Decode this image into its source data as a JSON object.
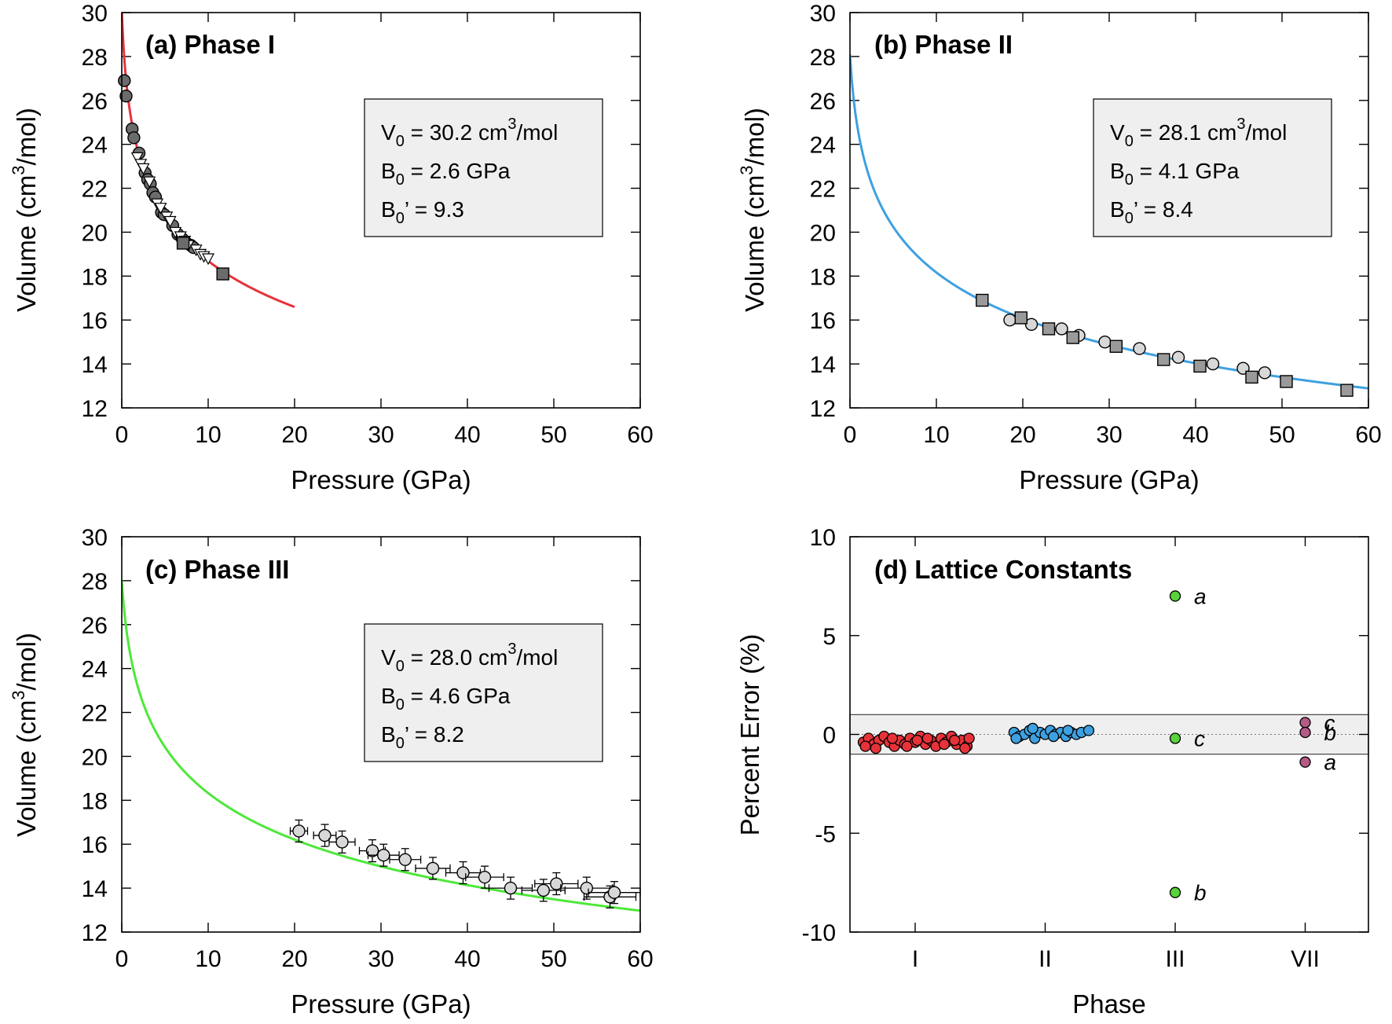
{
  "colors": {
    "phase1_curve": "#e8323a",
    "phase2_curve": "#3ea0e0",
    "phase3_curve": "#4ee83a",
    "gray_dark": "#6b6b6b",
    "gray_mid": "#9a9a9a",
    "gray_light": "#d8d8d8",
    "box_fill": "#efefef",
    "lattice_red": "#e8323a",
    "lattice_blue": "#3ea0e0",
    "lattice_green": "#58d33a",
    "lattice_purple": "#b45a86"
  },
  "chart_data": [
    {
      "type": "scatter",
      "title": "(a) Phase I",
      "xlabel": "Pressure (GPa)",
      "ylabel_main": "Volume (cm",
      "ylabel_sup": "3",
      "ylabel_end": "/mol)",
      "xlim": [
        0,
        60
      ],
      "ylim": [
        12,
        30
      ],
      "xticks": [
        "0",
        "10",
        "20",
        "30",
        "40",
        "50",
        "60"
      ],
      "yticks": [
        "12",
        "14",
        "16",
        "18",
        "20",
        "22",
        "24",
        "26",
        "28",
        "30"
      ],
      "fit": {
        "V0": 30.2,
        "B0": 2.6,
        "Bp": 9.3,
        "pmax": 20
      },
      "params": {
        "v0_main": "V",
        "v0_sub": "0",
        "v0_rest": " = 30.2 cm",
        "v0_sup": "3",
        "v0_end": "/mol",
        "b0_main": "B",
        "b0_sub": "0",
        "b0_rest": " = 2.6 GPa",
        "bp_main": "B",
        "bp_sub": "0",
        "bp_rest": "’ = 9.3"
      },
      "series": [
        {
          "marker": "circle",
          "fill": "gray_dark",
          "points": [
            [
              0.3,
              26.9
            ],
            [
              0.5,
              26.2
            ],
            [
              1.2,
              24.7
            ],
            [
              1.4,
              24.3
            ],
            [
              2.0,
              23.6
            ],
            [
              2.7,
              22.7
            ],
            [
              3.0,
              22.4
            ],
            [
              3.3,
              22.2
            ],
            [
              3.6,
              21.8
            ],
            [
              3.9,
              21.6
            ],
            [
              4.6,
              20.9
            ],
            [
              4.9,
              20.8
            ],
            [
              5.9,
              20.3
            ],
            [
              6.5,
              19.9
            ],
            [
              7.0,
              19.7
            ],
            [
              7.5,
              19.5
            ],
            [
              8.0,
              19.4
            ],
            [
              8.3,
              19.3
            ]
          ]
        },
        {
          "marker": "triangle-down",
          "fill": "white",
          "points": [
            [
              1.8,
              23.4
            ],
            [
              2.2,
              23.1
            ],
            [
              2.5,
              22.9
            ],
            [
              3.2,
              22.3
            ],
            [
              4.1,
              21.3
            ],
            [
              4.5,
              21.1
            ],
            [
              5.2,
              20.7
            ],
            [
              5.6,
              20.5
            ],
            [
              6.2,
              20.0
            ],
            [
              6.8,
              19.8
            ],
            [
              7.3,
              19.6
            ],
            [
              7.7,
              19.4
            ],
            [
              8.6,
              19.2
            ],
            [
              9.1,
              19.0
            ],
            [
              9.5,
              18.9
            ],
            [
              10.0,
              18.8
            ]
          ]
        },
        {
          "marker": "square",
          "fill": "gray_dark",
          "points": [
            [
              7.1,
              19.5
            ],
            [
              11.7,
              18.1
            ]
          ]
        }
      ]
    },
    {
      "type": "scatter",
      "title": "(b) Phase II",
      "xlabel": "Pressure (GPa)",
      "ylabel_main": "Volume (cm",
      "ylabel_sup": "3",
      "ylabel_end": "/mol)",
      "xlim": [
        0,
        60
      ],
      "ylim": [
        12,
        30
      ],
      "xticks": [
        "0",
        "10",
        "20",
        "30",
        "40",
        "50",
        "60"
      ],
      "yticks": [
        "12",
        "14",
        "16",
        "18",
        "20",
        "22",
        "24",
        "26",
        "28",
        "30"
      ],
      "fit": {
        "V0": 28.1,
        "B0": 4.1,
        "Bp": 8.4,
        "pmax": 60
      },
      "params": {
        "v0_main": "V",
        "v0_sub": "0",
        "v0_rest": " = 28.1 cm",
        "v0_sup": "3",
        "v0_end": "/mol",
        "b0_main": "B",
        "b0_sub": "0",
        "b0_rest": " = 4.1 GPa",
        "bp_main": "B",
        "bp_sub": "0",
        "bp_rest": "’ = 8.4"
      },
      "series": [
        {
          "marker": "circle",
          "fill": "gray_light",
          "points": [
            [
              18.5,
              16.0
            ],
            [
              21.0,
              15.8
            ],
            [
              24.5,
              15.6
            ],
            [
              26.5,
              15.3
            ],
            [
              29.5,
              15.0
            ],
            [
              33.5,
              14.7
            ],
            [
              38.0,
              14.3
            ],
            [
              42.0,
              14.0
            ],
            [
              45.5,
              13.8
            ],
            [
              48.0,
              13.6
            ]
          ]
        },
        {
          "marker": "square",
          "fill": "gray_mid",
          "points": [
            [
              15.3,
              16.9
            ],
            [
              19.8,
              16.1
            ],
            [
              23.0,
              15.6
            ],
            [
              25.8,
              15.2
            ],
            [
              30.8,
              14.8
            ],
            [
              36.3,
              14.2
            ],
            [
              40.5,
              13.9
            ],
            [
              46.5,
              13.4
            ],
            [
              50.5,
              13.2
            ],
            [
              57.5,
              12.8
            ]
          ]
        }
      ]
    },
    {
      "type": "scatter",
      "title": "(c) Phase III",
      "xlabel": "Pressure (GPa)",
      "ylabel_main": "Volume (cm",
      "ylabel_sup": "3",
      "ylabel_end": "/mol)",
      "xlim": [
        0,
        60
      ],
      "ylim": [
        12,
        30
      ],
      "xticks": [
        "0",
        "10",
        "20",
        "30",
        "40",
        "50",
        "60"
      ],
      "yticks": [
        "12",
        "14",
        "16",
        "18",
        "20",
        "22",
        "24",
        "26",
        "28",
        "30"
      ],
      "fit": {
        "V0": 28.0,
        "B0": 4.6,
        "Bp": 8.2,
        "pmax": 60
      },
      "params": {
        "v0_main": "V",
        "v0_sub": "0",
        "v0_rest": " = 28.0 cm",
        "v0_sup": "3",
        "v0_end": "/mol",
        "b0_main": "B",
        "b0_sub": "0",
        "b0_rest": " = 4.6 GPa",
        "bp_main": "B",
        "bp_sub": "0",
        "bp_rest": "’ = 8.2"
      },
      "series": [
        {
          "marker": "circle-errorbar",
          "fill": "gray_light",
          "points": [
            [
              20.5,
              16.6,
              1.0,
              0.5
            ],
            [
              23.5,
              16.4,
              1.3,
              0.5
            ],
            [
              25.5,
              16.1,
              1.5,
              0.5
            ],
            [
              29.0,
              15.7,
              1.5,
              0.5
            ],
            [
              30.3,
              15.5,
              1.8,
              0.5
            ],
            [
              32.8,
              15.3,
              1.8,
              0.5
            ],
            [
              36.0,
              14.9,
              2.0,
              0.5
            ],
            [
              39.5,
              14.7,
              2.0,
              0.5
            ],
            [
              42.0,
              14.5,
              2.2,
              0.5
            ],
            [
              45.0,
              14.0,
              2.5,
              0.5
            ],
            [
              48.8,
              13.9,
              2.5,
              0.5
            ],
            [
              50.3,
              14.2,
              2.5,
              0.5
            ],
            [
              53.8,
              14.0,
              3.0,
              0.5
            ],
            [
              56.5,
              13.6,
              3.0,
              0.5
            ],
            [
              57.0,
              13.8,
              3.0,
              0.5
            ]
          ]
        }
      ]
    },
    {
      "type": "scatter",
      "title": "(d) Lattice Constants",
      "xlabel": "Phase",
      "ylabel": "Percent Error (%)",
      "ylim": [
        -10,
        10
      ],
      "xcategories": [
        "I",
        "II",
        "III",
        "VII"
      ],
      "yticks": [
        "-10",
        "-5",
        "0",
        "5",
        "10"
      ],
      "band": [
        -1,
        1
      ],
      "series": [
        {
          "category": 0,
          "fill": "lattice_red",
          "points": [
            [
              -0.5,
              -0.4
            ],
            [
              -0.45,
              -0.2
            ],
            [
              -0.4,
              -0.5
            ],
            [
              -0.35,
              -0.3
            ],
            [
              -0.3,
              -0.1
            ],
            [
              -0.25,
              -0.4
            ],
            [
              -0.2,
              -0.6
            ],
            [
              -0.15,
              -0.3
            ],
            [
              -0.1,
              -0.5
            ],
            [
              -0.05,
              -0.2
            ],
            [
              0.0,
              -0.4
            ],
            [
              0.05,
              -0.1
            ],
            [
              0.1,
              -0.5
            ],
            [
              0.15,
              -0.3
            ],
            [
              0.2,
              -0.6
            ],
            [
              0.25,
              -0.2
            ],
            [
              0.3,
              -0.4
            ],
            [
              0.35,
              -0.1
            ],
            [
              0.4,
              -0.5
            ],
            [
              0.45,
              -0.3
            ],
            [
              0.5,
              -0.6
            ],
            [
              -0.48,
              -0.6
            ],
            [
              -0.38,
              -0.7
            ],
            [
              -0.22,
              -0.2
            ],
            [
              -0.08,
              -0.6
            ],
            [
              0.02,
              -0.3
            ],
            [
              0.12,
              -0.2
            ],
            [
              0.28,
              -0.5
            ],
            [
              0.38,
              -0.3
            ],
            [
              0.48,
              -0.7
            ],
            [
              0.52,
              -0.2
            ]
          ]
        },
        {
          "category": 1,
          "fill": "lattice_blue",
          "points": [
            [
              -0.3,
              0.1
            ],
            [
              -0.25,
              -0.1
            ],
            [
              -0.2,
              0.0
            ],
            [
              -0.15,
              0.2
            ],
            [
              -0.1,
              -0.2
            ],
            [
              -0.05,
              0.1
            ],
            [
              0.0,
              0.0
            ],
            [
              0.05,
              0.2
            ],
            [
              0.1,
              0.0
            ],
            [
              0.15,
              0.1
            ],
            [
              0.2,
              -0.1
            ],
            [
              0.25,
              0.1
            ],
            [
              0.3,
              0.0
            ],
            [
              0.35,
              0.1
            ],
            [
              -0.28,
              -0.2
            ],
            [
              -0.12,
              0.3
            ],
            [
              0.08,
              -0.1
            ],
            [
              0.22,
              0.2
            ],
            [
              0.42,
              0.2
            ]
          ]
        },
        {
          "category": 2,
          "fill": "lattice_green",
          "points": [
            [
              0,
              7.0
            ],
            [
              0,
              -0.2
            ],
            [
              0,
              -8.0
            ]
          ],
          "labels": [
            "a",
            "c",
            "b"
          ]
        },
        {
          "category": 3,
          "fill": "lattice_purple",
          "points": [
            [
              0,
              0.6
            ],
            [
              0,
              0.1
            ],
            [
              0,
              -1.4
            ]
          ],
          "labels": [
            "c",
            "b",
            "a"
          ]
        }
      ]
    }
  ]
}
